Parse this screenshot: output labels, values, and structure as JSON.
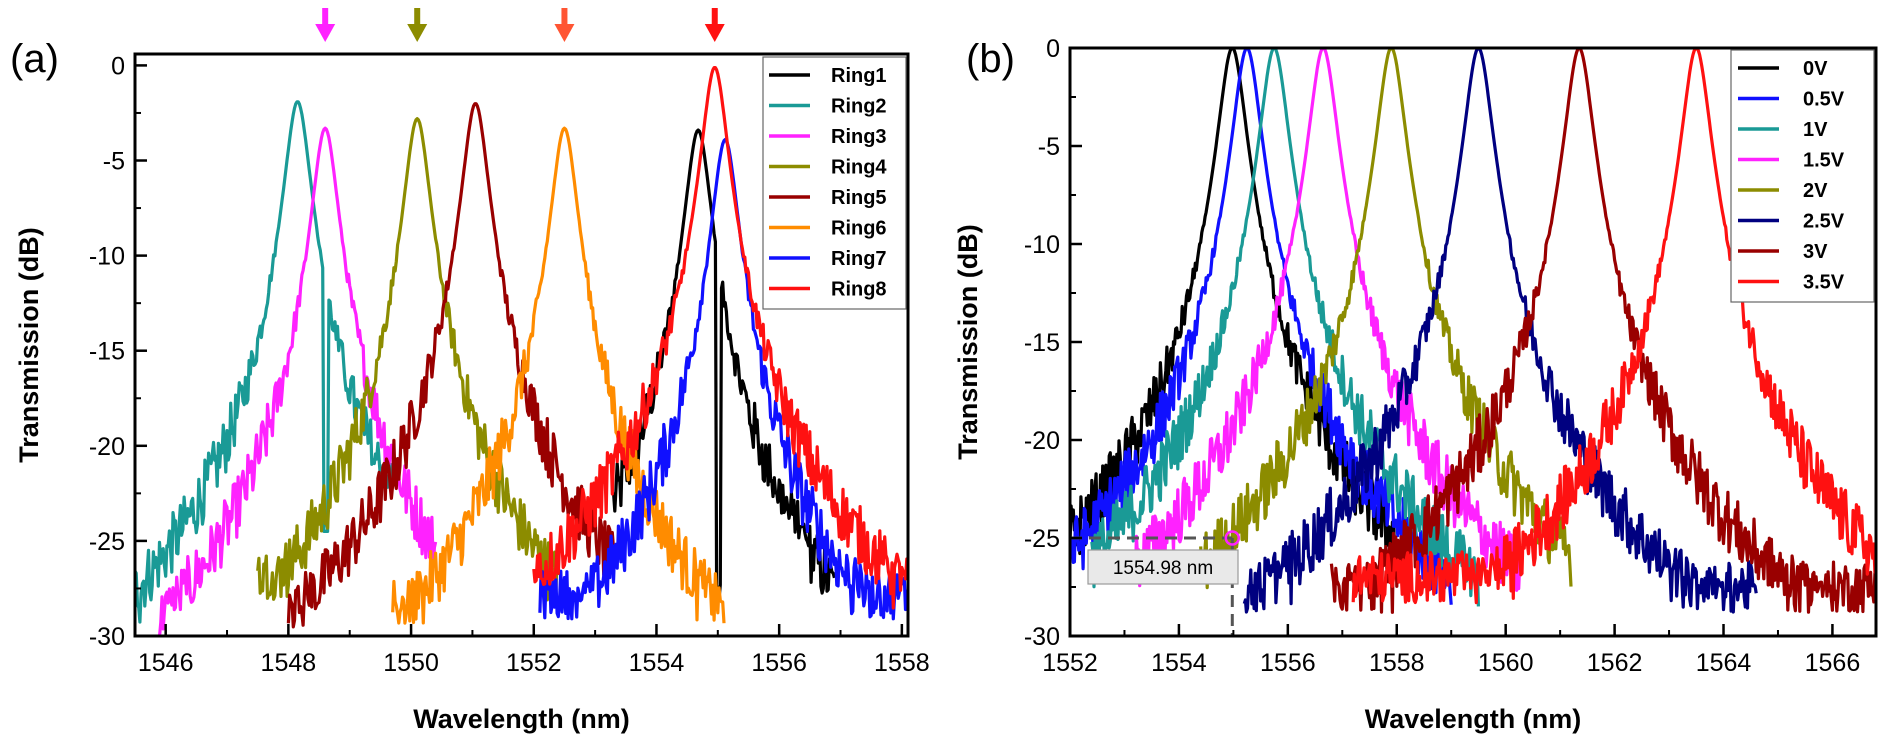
{
  "chart_data": [
    {
      "type": "line",
      "panel_label": "(a)",
      "xlabel": "Wavelength (nm)",
      "ylabel": "Transmission (dB)",
      "xlim": [
        1545.5,
        1558.1
      ],
      "ylim": [
        -30,
        0.6
      ],
      "xticks": [
        1546,
        1548,
        1550,
        1552,
        1554,
        1556,
        1558
      ],
      "xtick_labels": [
        "1546",
        "1548",
        "1550",
        "1552",
        "1554",
        "1556",
        "1558"
      ],
      "yticks": [
        0,
        -5,
        -10,
        -15,
        -20,
        -25,
        -30
      ],
      "ytick_labels": [
        "0",
        "-5",
        "-10",
        "-15",
        "-20",
        "-25",
        "-30"
      ],
      "legend_position": "top-right",
      "series": [
        {
          "name": "Ring1",
          "color": "#000000",
          "peak": 1554.68,
          "peak_db": -3.4,
          "floor": -27.8,
          "range": [
            1553.3,
            1556.9
          ],
          "dip": {
            "x": 1555.0,
            "db": -30
          },
          "shoulder": {
            "x": 1555.3,
            "db": -19.6
          }
        },
        {
          "name": "Ring2",
          "color": "#1a9a96",
          "peak": 1548.15,
          "peak_db": -1.9,
          "floor": -28.6,
          "range": [
            1545.5,
            1549.7
          ],
          "dip": {
            "x": 1548.6,
            "db": -24.5
          },
          "shoulder": {
            "x": 1549.0,
            "db": -19.0
          }
        },
        {
          "name": "Ring3",
          "color": "#ff22ff",
          "peak": 1548.6,
          "peak_db": -3.3,
          "floor": -28.8,
          "range": [
            1545.9,
            1550.4
          ]
        },
        {
          "name": "Ring4",
          "color": "#8c8c00",
          "peak": 1550.1,
          "peak_db": -2.8,
          "floor": -26.8,
          "range": [
            1547.5,
            1552.4
          ]
        },
        {
          "name": "Ring5",
          "color": "#990000",
          "peak": 1551.05,
          "peak_db": -2.0,
          "floor": -28.5,
          "range": [
            1548.0,
            1553.3
          ]
        },
        {
          "name": "Ring6",
          "color": "#ff8c00",
          "peak": 1552.5,
          "peak_db": -3.3,
          "floor": -28.3,
          "range": [
            1549.7,
            1555.1
          ]
        },
        {
          "name": "Ring7",
          "color": "#1010ff",
          "peak": 1555.12,
          "peak_db": -3.9,
          "floor": -27.8,
          "range": [
            1552.1,
            1558.1
          ]
        },
        {
          "name": "Ring8",
          "color": "#ff1111",
          "peak": 1554.95,
          "peak_db": -0.1,
          "floor": -27.4,
          "range": [
            1552.0,
            1558.1
          ]
        }
      ],
      "markers": [
        {
          "type": "arrow",
          "x": 1548.6,
          "color": "#ff22ff"
        },
        {
          "type": "arrow",
          "x": 1550.1,
          "color": "#8c8c00"
        },
        {
          "type": "arrow",
          "x": 1552.5,
          "color": "#ff5533"
        },
        {
          "type": "arrow",
          "x": 1554.95,
          "color": "#ff1111"
        }
      ]
    },
    {
      "type": "line",
      "panel_label": "(b)",
      "xlabel": "Wavelength (nm)",
      "ylabel": "Transmission (dB)",
      "xlim": [
        1552,
        1566.8
      ],
      "ylim": [
        -30,
        0
      ],
      "xticks": [
        1552,
        1554,
        1556,
        1558,
        1560,
        1562,
        1564,
        1566
      ],
      "xtick_labels": [
        "1552",
        "1554",
        "1556",
        "1558",
        "1560",
        "1562",
        "1564",
        "1566"
      ],
      "yticks": [
        0,
        -5,
        -10,
        -15,
        -20,
        -25,
        -30
      ],
      "ytick_labels": [
        "0",
        "-5",
        "-10",
        "-15",
        "-20",
        "-25",
        "-30"
      ],
      "legend_position": "top-right",
      "series": [
        {
          "name": "0V",
          "color": "#000000",
          "peak": 1554.98,
          "peak_db": 0,
          "floor": -27.5,
          "range": [
            1552.0,
            1558.0
          ]
        },
        {
          "name": "0.5V",
          "color": "#1010ff",
          "peak": 1555.25,
          "peak_db": 0,
          "floor": -28.0,
          "range": [
            1552.0,
            1559.0
          ]
        },
        {
          "name": "1V",
          "color": "#1a9a96",
          "peak": 1555.75,
          "peak_db": 0,
          "floor": -27.5,
          "range": [
            1552.4,
            1559.5
          ]
        },
        {
          "name": "1.5V",
          "color": "#ff22ff",
          "peak": 1556.65,
          "peak_db": 0,
          "floor": -28.0,
          "range": [
            1553.2,
            1560.3
          ]
        },
        {
          "name": "2V",
          "color": "#8c8c00",
          "peak": 1557.9,
          "peak_db": 0,
          "floor": -27.8,
          "range": [
            1554.4,
            1561.2
          ]
        },
        {
          "name": "2.5V",
          "color": "#000080",
          "peak": 1559.5,
          "peak_db": 0,
          "floor": -27.5,
          "range": [
            1555.2,
            1564.6
          ]
        },
        {
          "name": "3V",
          "color": "#990000",
          "peak": 1561.35,
          "peak_db": 0,
          "floor": -27.5,
          "range": [
            1556.8,
            1566.8
          ]
        },
        {
          "name": "3.5V",
          "color": "#ff1111",
          "peak": 1563.5,
          "peak_db": 0,
          "floor": -27.0,
          "range": [
            1557.2,
            1566.8
          ]
        }
      ],
      "annotation": {
        "text": "1554.98 nm",
        "x": 1554.98,
        "y": -25,
        "color": "#ff22ff"
      }
    }
  ]
}
